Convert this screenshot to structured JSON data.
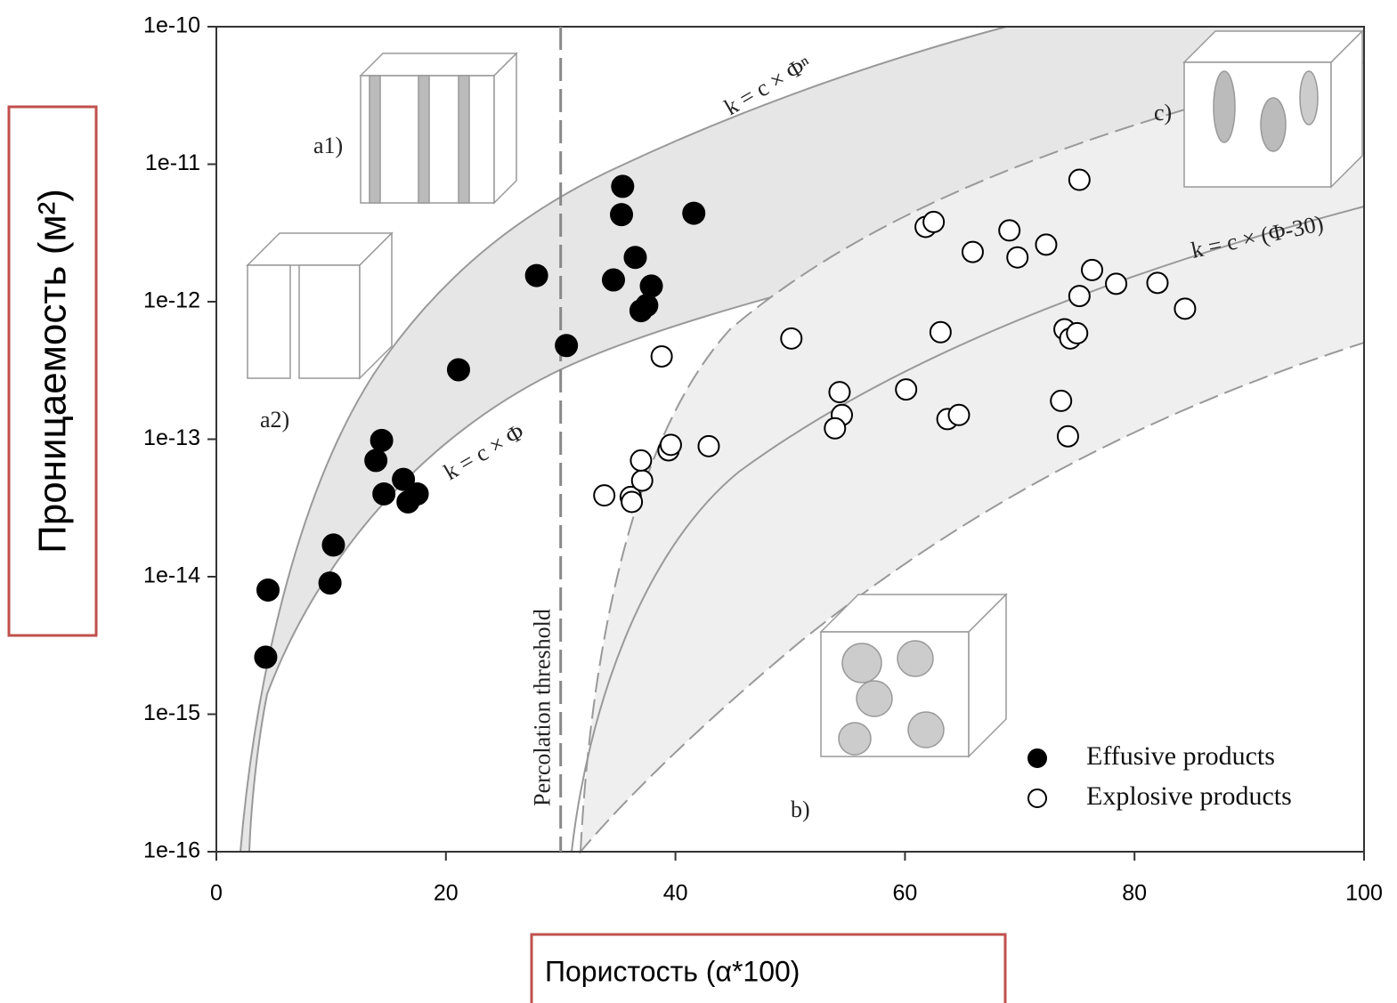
{
  "chart_data": {
    "type": "scatter",
    "xlabel": "Пористость (α*100)",
    "ylabel": "Проницаемость (м²)",
    "xlim": [
      0,
      100
    ],
    "xticks": [
      0,
      20,
      40,
      60,
      80,
      100
    ],
    "ylim": [
      1e-16,
      1e-10
    ],
    "yticks": [
      1e-16,
      1e-15,
      1e-14,
      1e-13,
      1e-12,
      1e-11,
      1e-10
    ],
    "ylog": true,
    "threshold": {
      "x": 30,
      "label": "Percolation threshold"
    },
    "annotations": [
      "a1)",
      "a2)",
      "b)",
      "c)",
      "k = c × Φⁿ",
      "k = c × Φ",
      "k = c × (Φ-30)"
    ],
    "series": [
      {
        "name": "Effusive products",
        "color": "#000000",
        "marker": "filled",
        "x": [
          4.5,
          4.3,
          10.2,
          9.9,
          14.4,
          13.9,
          14.6,
          16.3,
          16.7,
          17.5,
          21.1,
          27.9,
          30.5,
          35.4,
          35.3,
          36.5,
          34.6,
          37.9,
          37.5,
          37.0,
          41.6
        ],
        "values": [
          8e-15,
          2.6e-15,
          1.7e-14,
          9e-15,
          9.8e-14,
          7e-14,
          4e-14,
          5.1e-14,
          3.5e-14,
          4e-14,
          3.2e-13,
          1.55e-12,
          4.8e-13,
          6.9e-12,
          4.3e-12,
          2.1e-12,
          1.44e-12,
          1.3e-12,
          9.4e-13,
          8.6e-13,
          4.4e-12
        ]
      },
      {
        "name": "Explosive products",
        "color": "#000000",
        "marker": "open",
        "x": [
          33.8,
          36.1,
          36.2,
          37.1,
          37.0,
          39.4,
          39.6,
          42.9,
          38.8,
          50.1,
          54.3,
          54.5,
          53.9,
          60.1,
          63.1,
          63.7,
          64.7,
          61.8,
          62.5,
          65.9,
          69.1,
          69.8,
          72.3,
          75.2,
          76.3,
          78.4,
          82.0,
          84.4,
          75.2,
          73.9,
          74.4,
          75.0,
          73.6,
          74.2
        ],
        "values": [
          3.9e-14,
          3.8e-14,
          3.5e-14,
          5e-14,
          7e-14,
          8.3e-14,
          9.1e-14,
          8.9e-14,
          4e-13,
          5.4e-13,
          2.2e-13,
          1.5e-13,
          1.2e-13,
          2.3e-13,
          6e-13,
          1.4e-13,
          1.5e-13,
          3.5e-12,
          3.8e-12,
          2.3e-12,
          3.3e-12,
          2.1e-12,
          2.6e-12,
          7.7e-12,
          1.7e-12,
          1.35e-12,
          1.37e-12,
          8.9e-13,
          1.1e-12,
          6.3e-13,
          5.4e-13,
          5.9e-13,
          1.9e-13,
          1.05e-13
        ]
      }
    ]
  }
}
